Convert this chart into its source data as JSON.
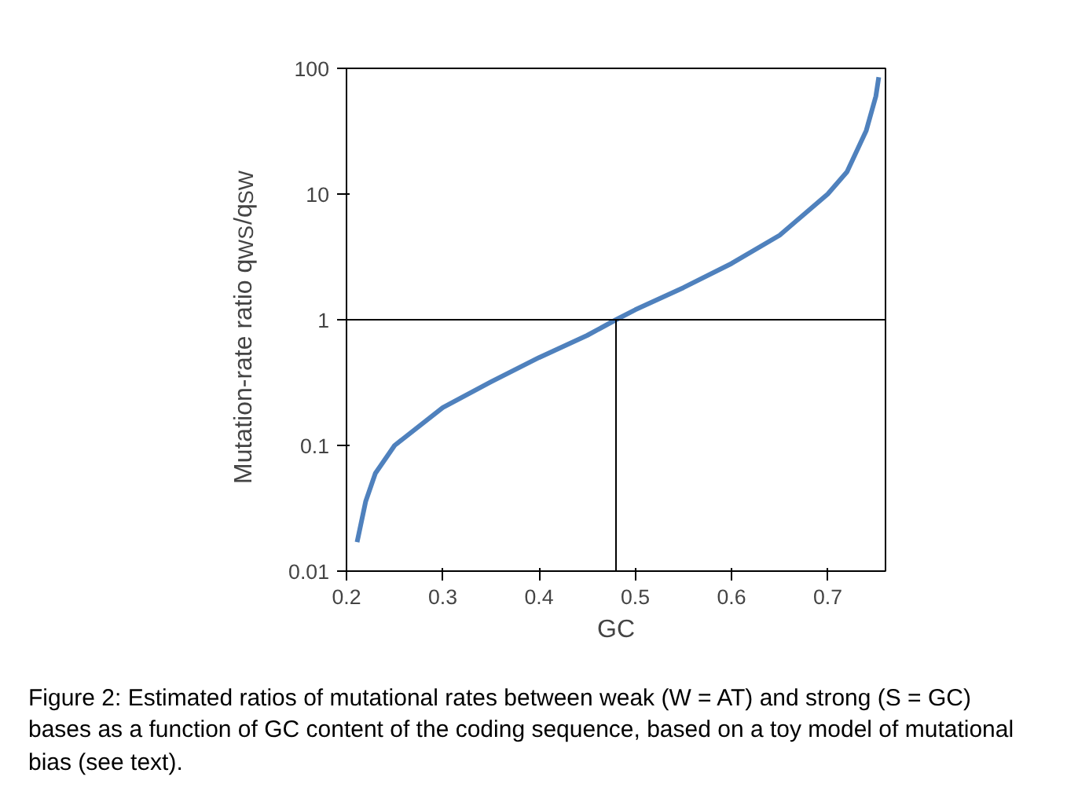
{
  "chart_data": {
    "type": "line",
    "xlabel": "GC",
    "ylabel": "Mutation-rate ratio q$_{WS}$/q$_{SW}$",
    "log": "y",
    "grid": false,
    "marker": "none",
    "line_style": "solid",
    "xlim": [
      0.2,
      0.76
    ],
    "xticks": [
      0.2,
      0.3,
      0.4,
      0.5,
      0.6,
      0.7
    ],
    "ylim": [
      0.01,
      100
    ],
    "yticks": [
      0.01,
      0.1,
      1,
      10,
      100
    ],
    "series": [
      {
        "color": "#4f81bd",
        "x": [
          0.211,
          0.22,
          0.23,
          0.25,
          0.3,
          0.35,
          0.4,
          0.45,
          0.48,
          0.5,
          0.55,
          0.6,
          0.65,
          0.7,
          0.72,
          0.74,
          0.75,
          0.753
        ],
        "values": [
          0.017,
          0.036,
          0.06,
          0.1,
          0.2,
          0.32,
          0.5,
          0.75,
          1,
          1.2,
          1.8,
          2.8,
          4.7,
          10,
          15,
          32,
          60,
          85
        ]
      },
      {
        "color": "#000000",
        "x": [
          0.48,
          0.48
        ],
        "values": [
          0.01,
          1
        ]
      }
    ],
    "ref_lines": [
      {
        "axis": "y",
        "value": 1,
        "color": "#000000"
      }
    ],
    "annotations": [
      "Figure 2:  Estimated ratios of mutational rates between weak (W = AT) and strong (S = GC) bases as a function of GC content of the coding sequence, based on a toy model of mutational bias (see text)."
    ]
  }
}
